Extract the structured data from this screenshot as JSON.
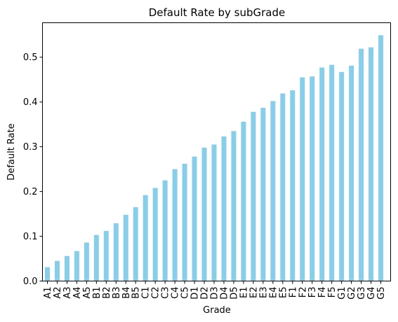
{
  "chart_data": {
    "type": "bar",
    "title": "Default Rate by subGrade",
    "xlabel": "Grade",
    "ylabel": "Default Rate",
    "categories": [
      "A1",
      "A2",
      "A3",
      "A4",
      "A5",
      "B1",
      "B2",
      "B3",
      "B4",
      "B5",
      "C1",
      "C2",
      "C3",
      "C4",
      "C5",
      "D1",
      "D2",
      "D3",
      "D4",
      "D5",
      "E1",
      "E2",
      "E3",
      "E4",
      "E5",
      "F1",
      "F2",
      "F3",
      "F4",
      "F5",
      "G1",
      "G2",
      "G3",
      "G4",
      "G5"
    ],
    "values": [
      0.031,
      0.045,
      0.056,
      0.067,
      0.086,
      0.103,
      0.112,
      0.129,
      0.148,
      0.165,
      0.192,
      0.208,
      0.225,
      0.25,
      0.262,
      0.278,
      0.298,
      0.305,
      0.323,
      0.335,
      0.356,
      0.378,
      0.387,
      0.402,
      0.419,
      0.426,
      0.455,
      0.457,
      0.477,
      0.483,
      0.467,
      0.481,
      0.519,
      0.522,
      0.549
    ],
    "ylim": [
      0,
      0.577
    ],
    "yticks": [
      0.0,
      0.1,
      0.2,
      0.3,
      0.4,
      0.5
    ],
    "ytick_labels": [
      "0.0",
      "0.1",
      "0.2",
      "0.3",
      "0.4",
      "0.5"
    ],
    "bar_color": "#87ceeb",
    "grid": false
  }
}
